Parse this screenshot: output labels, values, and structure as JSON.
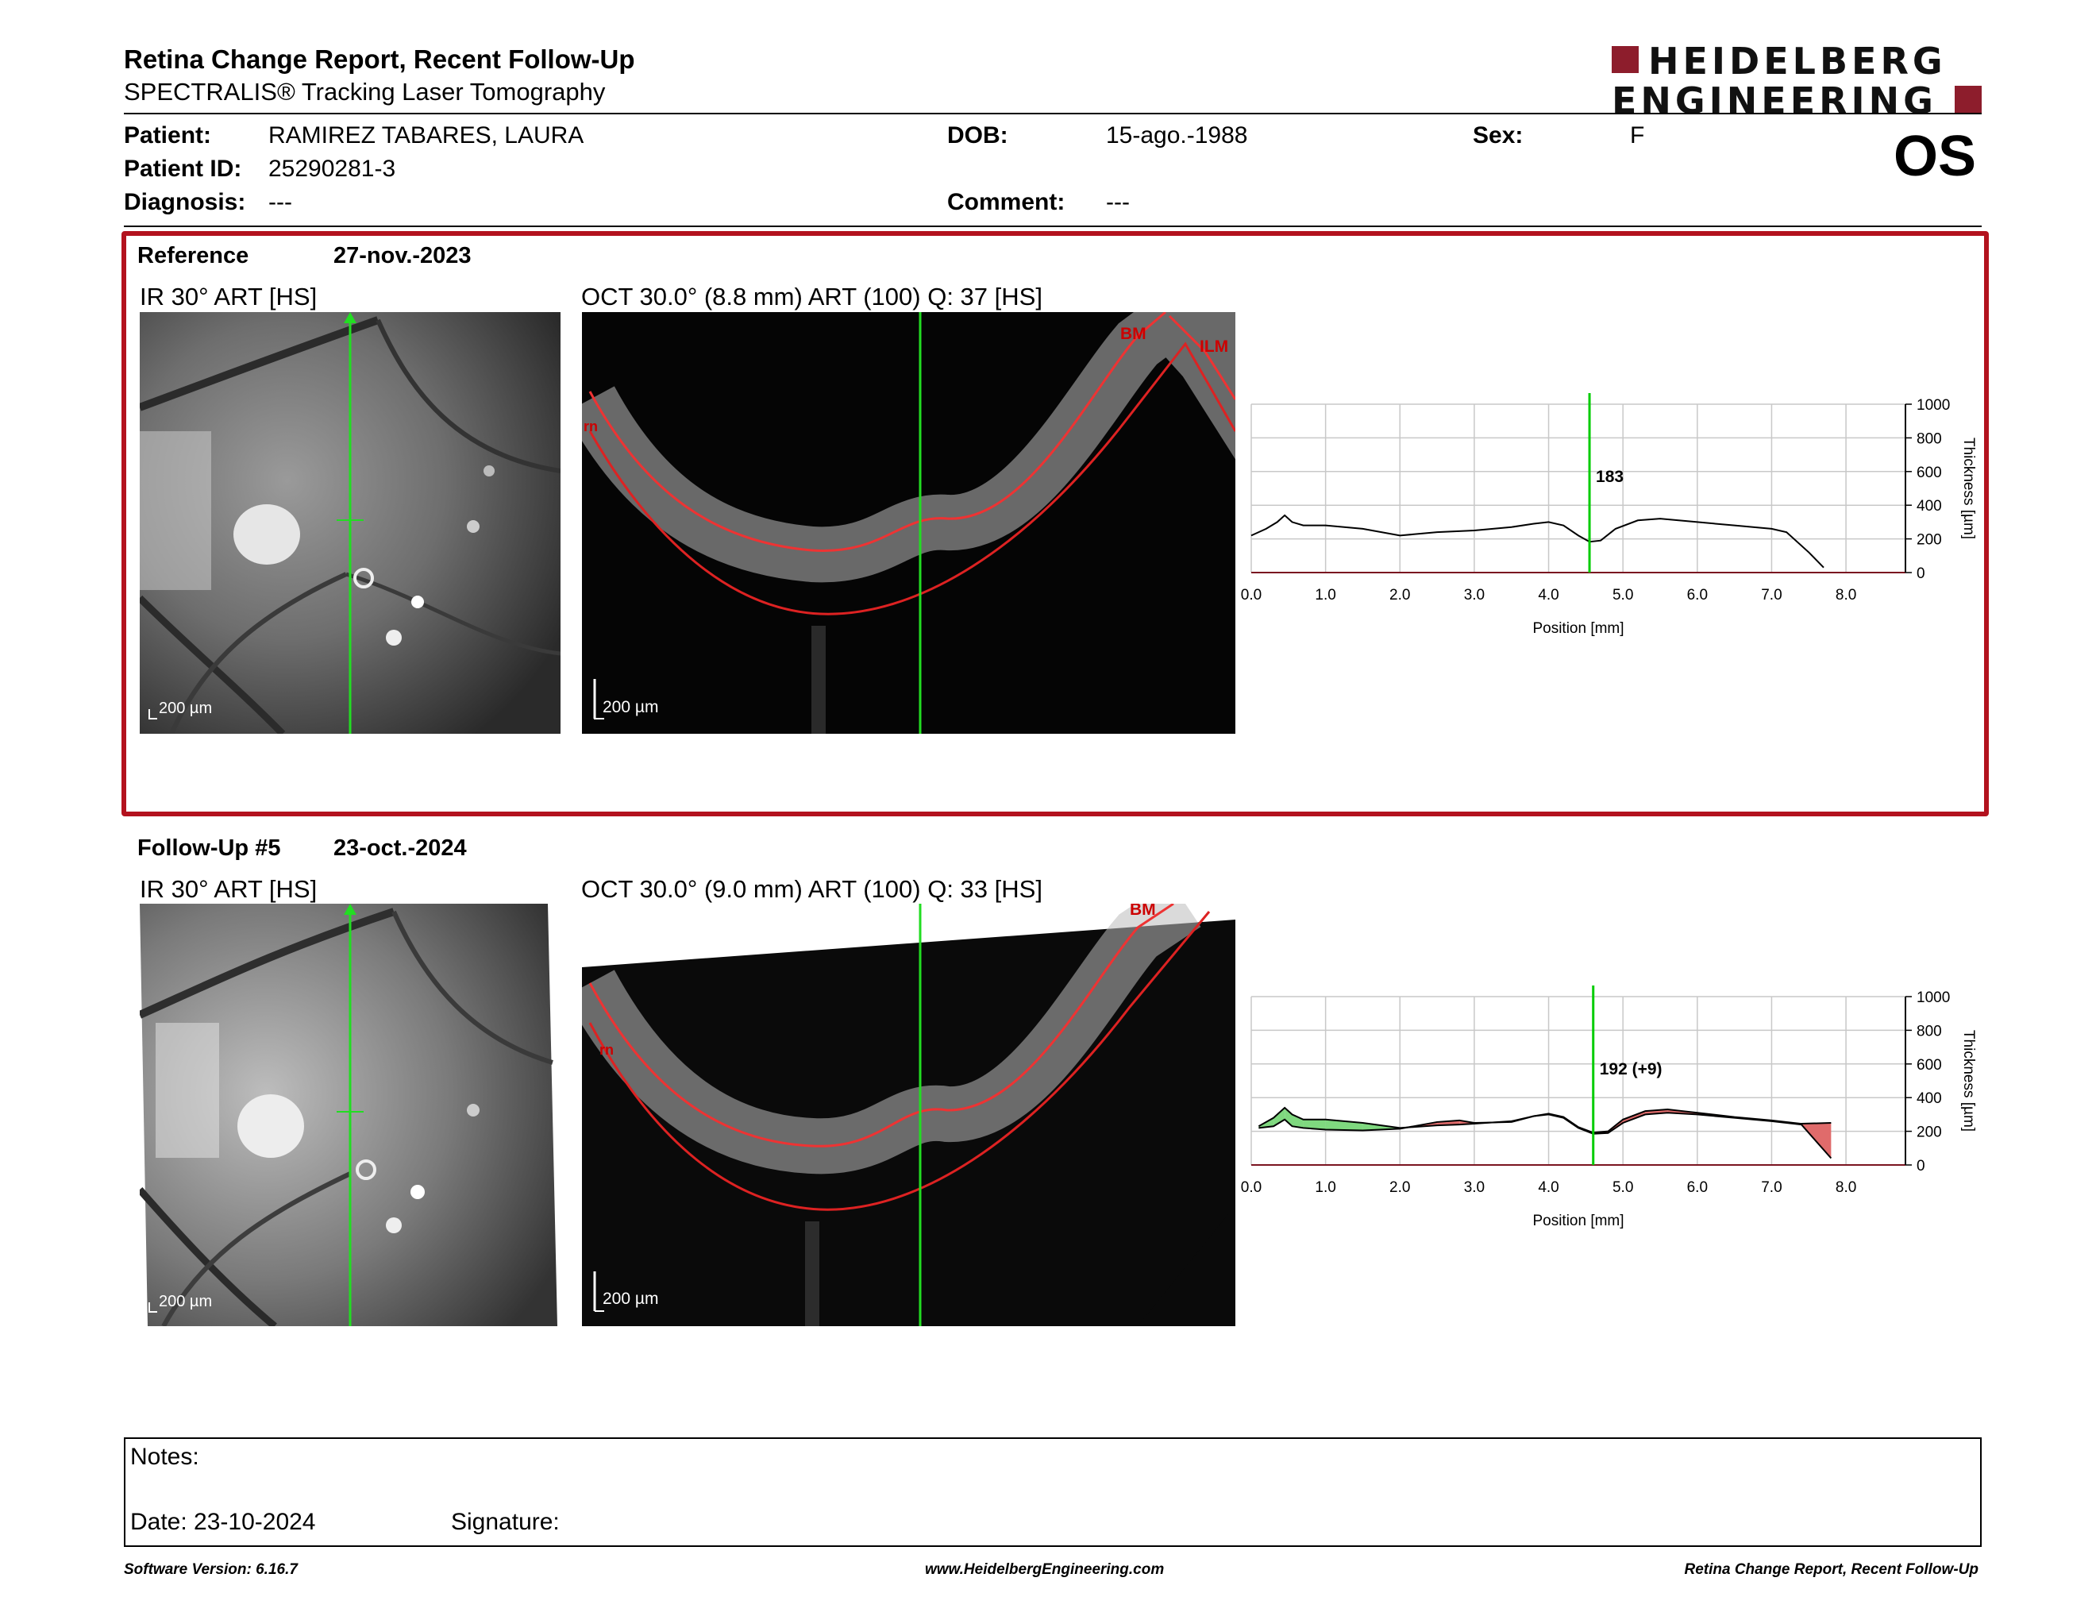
{
  "header": {
    "title": "Retina Change Report, Recent Follow-Up",
    "subtitle": "SPECTRALIS® Tracking Laser Tomography",
    "logo_line1": "HEIDELBERG",
    "logo_line2": "ENGINEERING",
    "eye": "OS"
  },
  "patient": {
    "patient_label": "Patient:",
    "patient_value": "RAMIREZ TABARES, LAURA",
    "id_label": "Patient ID:",
    "id_value": "25290281-3",
    "diagnosis_label": "Diagnosis:",
    "diagnosis_value": "---",
    "dob_label": "DOB:",
    "dob_value": "15-ago.-1988",
    "comment_label": "Comment:",
    "comment_value": "---",
    "sex_label": "Sex:",
    "sex_value": "F"
  },
  "reference": {
    "label": "Reference",
    "date": "27-nov.-2023",
    "ir_caption": "IR 30° ART [HS]",
    "oct_caption": "OCT 30.0° (8.8 mm) ART (100) Q: 37 [HS]",
    "scale": "200 µm",
    "layer_labels": [
      "BM",
      "ILM",
      "rn"
    ],
    "thickness_value": "183"
  },
  "followup": {
    "label": "Follow-Up #5",
    "date": "23-oct.-2024",
    "ir_caption": "IR 30° ART [HS]",
    "oct_caption": "OCT 30.0° (9.0 mm) ART (100) Q: 33 [HS]",
    "scale": "200 µm",
    "layer_labels": [
      "BM",
      "rn"
    ],
    "thickness_value": "192 (+9)"
  },
  "chart_data": [
    {
      "type": "line",
      "xlabel": "Position [mm]",
      "ylabel": "Thickness [µm]",
      "xlim": [
        0.0,
        8.8
      ],
      "ylim": [
        0,
        1000
      ],
      "xticks": [
        "0.0",
        "1.0",
        "2.0",
        "3.0",
        "4.0",
        "5.0",
        "6.0",
        "7.0",
        "8.0"
      ],
      "yticks": [
        "0",
        "200",
        "400",
        "600",
        "800",
        "1000"
      ],
      "cursor_x": 4.55,
      "cursor_label": "183",
      "series": [
        {
          "x": [
            0.0,
            0.2,
            0.35,
            0.45,
            0.55,
            0.7,
            1.0,
            1.5,
            2.0,
            2.5,
            3.0,
            3.5,
            3.8,
            4.0,
            4.2,
            4.4,
            4.55,
            4.7,
            4.9,
            5.2,
            5.5,
            6.0,
            6.5,
            7.0,
            7.2,
            7.5,
            7.7
          ],
          "y": [
            220,
            260,
            300,
            340,
            300,
            280,
            280,
            260,
            220,
            240,
            250,
            270,
            290,
            300,
            280,
            220,
            183,
            190,
            260,
            310,
            320,
            300,
            280,
            260,
            240,
            120,
            30
          ]
        }
      ],
      "colors": {
        "line": "#000000",
        "cursor": "#00cc00",
        "grid": "#c8c8c8"
      }
    },
    {
      "type": "area",
      "xlabel": "Position [mm]",
      "ylabel": "Thickness [µm]",
      "xlim": [
        0.0,
        8.8
      ],
      "ylim": [
        0,
        1000
      ],
      "xticks": [
        "0.0",
        "1.0",
        "2.0",
        "3.0",
        "4.0",
        "5.0",
        "6.0",
        "7.0",
        "8.0"
      ],
      "yticks": [
        "0",
        "200",
        "400",
        "600",
        "800",
        "1000"
      ],
      "cursor_x": 4.6,
      "cursor_label": "192 (+9)",
      "series": [
        {
          "name": "Reference",
          "x": [
            0.1,
            0.3,
            0.45,
            0.55,
            0.7,
            1.0,
            1.5,
            2.0,
            2.5,
            2.8,
            3.0,
            3.5,
            3.8,
            4.0,
            4.2,
            4.4,
            4.6,
            4.8,
            5.0,
            5.3,
            5.6,
            6.0,
            6.5,
            7.0,
            7.4,
            7.8
          ],
          "y": [
            230,
            280,
            340,
            300,
            270,
            270,
            250,
            220,
            235,
            240,
            245,
            260,
            290,
            300,
            280,
            220,
            185,
            190,
            250,
            300,
            310,
            300,
            280,
            260,
            240,
            40
          ]
        },
        {
          "name": "Follow-Up",
          "x": [
            0.1,
            0.3,
            0.45,
            0.55,
            0.7,
            1.0,
            1.5,
            2.0,
            2.5,
            2.8,
            3.0,
            3.5,
            3.8,
            4.0,
            4.2,
            4.4,
            4.6,
            4.8,
            5.0,
            5.3,
            5.6,
            6.0,
            6.5,
            7.0,
            7.4,
            7.8
          ],
          "y": [
            220,
            230,
            270,
            230,
            220,
            210,
            205,
            215,
            255,
            265,
            250,
            255,
            290,
            305,
            285,
            225,
            192,
            200,
            270,
            320,
            330,
            310,
            285,
            265,
            245,
            250
          ]
        }
      ],
      "colors": {
        "line": "#000000",
        "increase": "#e06b6b",
        "decrease": "#7fd87f",
        "cursor": "#00cc00",
        "grid": "#c8c8c8"
      }
    }
  ],
  "notes": {
    "notes_label": "Notes:",
    "date_label": "Date: 23-10-2024",
    "signature_label": "Signature:"
  },
  "footer": {
    "left": "Software Version: 6.16.7",
    "center": "www.HeidelbergEngineering.com",
    "right": "Retina Change Report, Recent Follow-Up"
  }
}
